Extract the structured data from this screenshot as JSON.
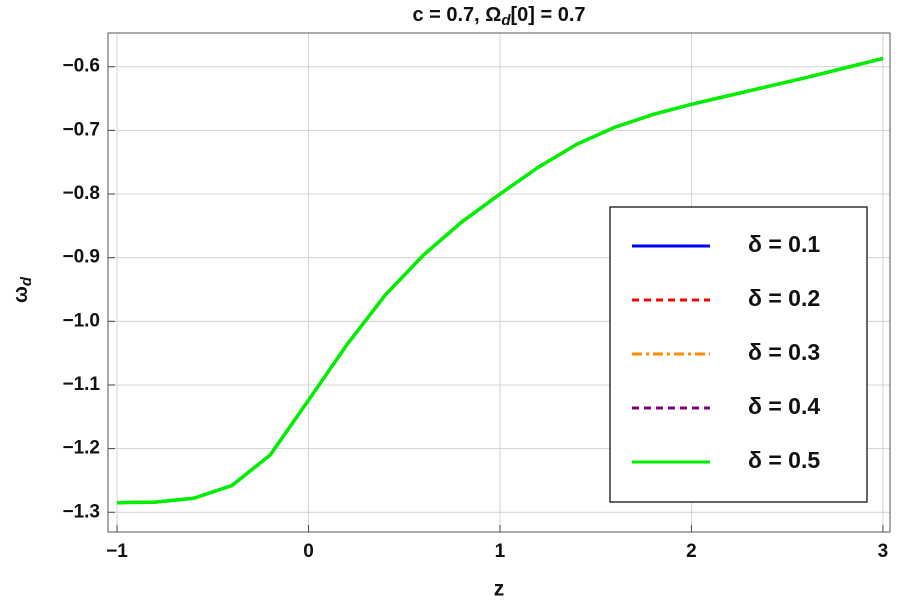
{
  "chart_data": {
    "type": "line",
    "title": [
      "c = 0.7, Ω",
      "d",
      "[0] = 0.7"
    ],
    "x_label": "z",
    "y_label": [
      "ω",
      "d"
    ],
    "x": [
      -1,
      -0.8,
      -0.6,
      -0.4,
      -0.2,
      0,
      0.2,
      0.4,
      0.6,
      0.8,
      1,
      1.2,
      1.4,
      1.6,
      1.8,
      2,
      2.2,
      2.4,
      2.6,
      2.8,
      3
    ],
    "series": [
      {
        "name": "δ = 0.1",
        "color": "#0000ff",
        "dash": "solid",
        "values": [
          -1.285,
          -1.284,
          -1.278,
          -1.258,
          -1.21,
          -1.124,
          -1.037,
          -0.959,
          -0.896,
          -0.844,
          -0.8,
          -0.758,
          -0.722,
          -0.695,
          -0.675,
          -0.659,
          -0.645,
          -0.631,
          -0.617,
          -0.602,
          -0.587
        ]
      },
      {
        "name": "δ = 0.2",
        "color": "#ff0000",
        "dash": "dashed",
        "values": [
          -1.285,
          -1.284,
          -1.278,
          -1.258,
          -1.21,
          -1.124,
          -1.037,
          -0.959,
          -0.896,
          -0.844,
          -0.8,
          -0.758,
          -0.722,
          -0.695,
          -0.675,
          -0.659,
          -0.645,
          -0.631,
          -0.617,
          -0.602,
          -0.587
        ]
      },
      {
        "name": "δ = 0.3",
        "color": "#ff8c00",
        "dash": "dashdot",
        "values": [
          -1.285,
          -1.284,
          -1.278,
          -1.258,
          -1.21,
          -1.124,
          -1.037,
          -0.959,
          -0.896,
          -0.844,
          -0.8,
          -0.758,
          -0.722,
          -0.695,
          -0.675,
          -0.659,
          -0.645,
          -0.631,
          -0.617,
          -0.602,
          -0.587
        ]
      },
      {
        "name": "δ = 0.4",
        "color": "#800080",
        "dash": "dashed",
        "values": [
          -1.285,
          -1.284,
          -1.278,
          -1.258,
          -1.21,
          -1.124,
          -1.037,
          -0.959,
          -0.896,
          -0.844,
          -0.8,
          -0.758,
          -0.722,
          -0.695,
          -0.675,
          -0.659,
          -0.645,
          -0.631,
          -0.617,
          -0.602,
          -0.587
        ]
      },
      {
        "name": "δ = 0.5",
        "color": "#00ee00",
        "dash": "solid",
        "values": [
          -1.285,
          -1.284,
          -1.278,
          -1.258,
          -1.21,
          -1.124,
          -1.037,
          -0.959,
          -0.896,
          -0.844,
          -0.8,
          -0.758,
          -0.722,
          -0.695,
          -0.675,
          -0.659,
          -0.645,
          -0.631,
          -0.617,
          -0.602,
          -0.587
        ]
      }
    ],
    "xlim": [
      -1.047,
      3.037
    ],
    "ylim": [
      -1.331,
      -0.547
    ],
    "xticks": [
      {
        "value": -1,
        "label": "−1"
      },
      0,
      1,
      2,
      3
    ],
    "yticks": [
      {
        "value": -1.3,
        "label": "−1.3"
      },
      {
        "value": -1.2,
        "label": "−1.2"
      },
      {
        "value": -1.1,
        "label": "−1.1"
      },
      {
        "value": -1.0,
        "label": "−1.0"
      },
      {
        "value": -0.9,
        "label": "−0.9"
      },
      {
        "value": -0.8,
        "label": "−0.8"
      },
      {
        "value": -0.7,
        "label": "−0.7"
      },
      {
        "value": -0.6,
        "label": "−0.6"
      }
    ],
    "grid": true,
    "legend": "right"
  }
}
